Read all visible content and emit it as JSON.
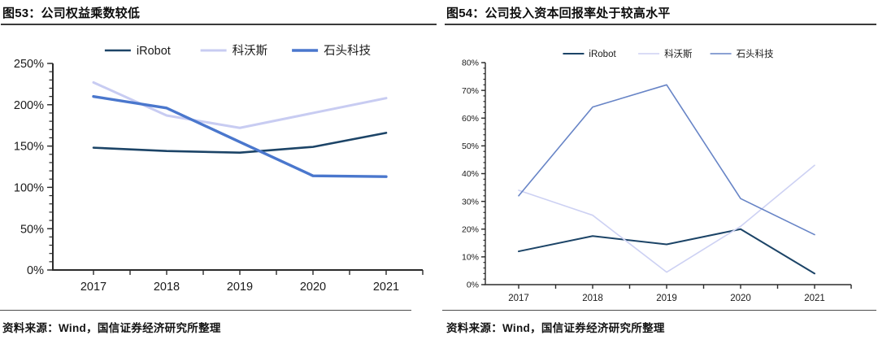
{
  "page": {
    "background": "#ffffff",
    "axis_color": "#2b2b2b",
    "text_color": "#1a1a1a"
  },
  "figures": [
    {
      "title": "图53：公司权益乘数较低",
      "source_note": "资料来源：Wind，国信证券经济研究所整理"
    },
    {
      "title": "图54：公司投入资本回报率处于较高水平",
      "source_note": "资料来源：Wind，国信证券经济研究所整理"
    }
  ],
  "chart_data": [
    {
      "type": "line",
      "title": "图53：公司权益乘数较低",
      "categories": [
        "2017",
        "2018",
        "2019",
        "2020",
        "2021"
      ],
      "series": [
        {
          "name": "iRobot",
          "color": "#1c4467",
          "width": 2.6,
          "values": [
            148,
            144,
            142,
            149,
            166
          ]
        },
        {
          "name": "科沃斯",
          "color": "#c8ccf2",
          "width": 3.0,
          "values": [
            227,
            187,
            172,
            190,
            208
          ]
        },
        {
          "name": "石头科技",
          "color": "#4a77cd",
          "width": 3.4,
          "values": [
            210,
            196,
            155,
            114,
            113
          ]
        }
      ],
      "xlabel": "",
      "ylabel": "",
      "ylim": [
        0,
        250
      ],
      "y_major_step": 50,
      "y_minor_step": 10,
      "y_tick_labels": [
        "0%",
        "50%",
        "100%",
        "150%",
        "200%",
        "250%"
      ],
      "y_tick_format": "percent",
      "grid": false,
      "legend_position": "top"
    },
    {
      "type": "line",
      "title": "图54：公司投入资本回报率处于较高水平",
      "categories": [
        "2017",
        "2018",
        "2019",
        "2020",
        "2021"
      ],
      "series": [
        {
          "name": "iRobot",
          "color": "#1c4467",
          "width": 2.0,
          "values": [
            12,
            17.5,
            14.5,
            20,
            4
          ]
        },
        {
          "name": "科沃斯",
          "color": "#cdd1f3",
          "width": 1.6,
          "values": [
            34,
            25,
            4.5,
            21,
            43
          ]
        },
        {
          "name": "石头科技",
          "color": "#6784c6",
          "width": 1.6,
          "values": [
            32,
            64,
            72,
            31,
            18
          ]
        }
      ],
      "xlabel": "",
      "ylabel": "",
      "ylim": [
        0,
        80
      ],
      "y_major_step": 10,
      "y_minor_step": 2,
      "y_tick_labels": [
        "0%",
        "10%",
        "20%",
        "30%",
        "40%",
        "50%",
        "60%",
        "70%",
        "80%"
      ],
      "y_tick_format": "percent",
      "grid": false,
      "legend_position": "top"
    }
  ]
}
